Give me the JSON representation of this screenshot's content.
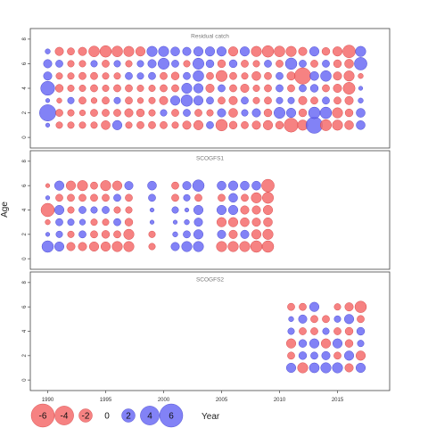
{
  "chart_data": {
    "type": "scatter",
    "subtype": "bubble",
    "ylabel": "Age",
    "xlabel": "Year",
    "xlim": [
      1988.5,
      2019.5
    ],
    "ylim": [
      -0.5,
      8.5
    ],
    "x_ticks": [
      1990,
      1995,
      2000,
      2005,
      2010,
      2015
    ],
    "y_ticks": [
      0,
      2,
      4,
      6,
      8
    ],
    "grid": false,
    "colors": {
      "positive": "#6c6cf5",
      "negative": "#f56c6c",
      "positive_edge": "#3838c8",
      "negative_edge": "#d03838"
    },
    "legend": {
      "placement": "bottom-left",
      "values": [
        -6,
        -4,
        -2,
        0,
        2,
        4,
        6
      ],
      "labels": [
        "-6",
        "-4",
        "-2",
        "0",
        "2",
        "4",
        "6"
      ]
    },
    "panels": [
      {
        "title": "Residual catch",
        "years": [
          1990,
          1991,
          1992,
          1993,
          1994,
          1995,
          1996,
          1997,
          1998,
          1999,
          2000,
          2001,
          2002,
          2003,
          2004,
          2005,
          2006,
          2007,
          2008,
          2009,
          2010,
          2011,
          2012,
          2013,
          2014,
          2015,
          2016,
          2017
        ],
        "ages": [
          1,
          2,
          3,
          4,
          5,
          6,
          7
        ],
        "residuals": [
          [
            0.2,
            -0.5,
            -0.5,
            -0.5,
            -0.5,
            -0.9,
            1.0,
            -0.5,
            -0.6,
            -0.6,
            -0.6,
            -0.5,
            -0.8,
            -1.0,
            0.6,
            -1.5,
            -0.7,
            -0.6,
            -0.8,
            -1.0,
            -0.7,
            -2.2,
            -1.2,
            3.0,
            -1.4,
            -1.2,
            -0.9,
            0.9
          ],
          [
            3.0,
            -0.6,
            -0.5,
            -0.4,
            -0.6,
            -0.6,
            -0.6,
            -0.8,
            -0.7,
            -0.5,
            0.5,
            -0.6,
            0.6,
            -0.6,
            -0.5,
            0.8,
            -0.9,
            0.5,
            0.8,
            -0.7,
            1.4,
            1.0,
            -0.7,
            1.5,
            1.5,
            -1.2,
            -0.7,
            0.9
          ],
          [
            0.2,
            -0.3,
            0.5,
            -0.6,
            -0.4,
            -0.6,
            0.5,
            -0.6,
            -0.4,
            -0.5,
            -0.8,
            1.0,
            1.5,
            1.0,
            0.6,
            -0.6,
            -0.8,
            0.6,
            -0.5,
            -0.6,
            0.5,
            0.5,
            -0.8,
            -0.6,
            0.6,
            -0.6,
            -0.8,
            0.3
          ],
          [
            2.2,
            -0.7,
            -0.5,
            -0.5,
            -0.6,
            -0.5,
            -0.6,
            -0.6,
            -0.5,
            -0.5,
            -0.6,
            -0.6,
            1.2,
            1.0,
            -0.8,
            0.6,
            -0.6,
            -0.8,
            -0.5,
            -0.6,
            0.6,
            -0.6,
            0.6,
            0.7,
            -0.6,
            -0.8,
            -1.6,
            0.2
          ],
          [
            0.8,
            -0.5,
            -0.5,
            -0.6,
            -0.6,
            -0.5,
            -0.5,
            0.6,
            0.5,
            0.6,
            -0.6,
            -0.7,
            0.6,
            1.3,
            -0.6,
            -1.4,
            -0.6,
            -0.5,
            -0.9,
            -0.6,
            0.6,
            -0.8,
            -3.0,
            0.9,
            1.3,
            -0.8,
            -1.2,
            -0.3
          ],
          [
            0.8,
            0.6,
            -0.5,
            -0.5,
            0.5,
            -0.6,
            0.5,
            -0.5,
            0.5,
            0.8,
            1.4,
            0.6,
            -0.5,
            1.4,
            0.7,
            -0.7,
            0.7,
            -0.6,
            -0.5,
            0.6,
            -0.6,
            1.5,
            0.6,
            -0.6,
            0.6,
            -0.7,
            -0.9,
            1.8
          ],
          [
            0.3,
            -0.8,
            -0.6,
            -0.8,
            -1.3,
            -1.5,
            -1.3,
            -1.2,
            -1.0,
            1.2,
            1.2,
            0.9,
            0.8,
            1.0,
            1.0,
            1.0,
            -1.0,
            1.0,
            -1.2,
            -1.5,
            -1.3,
            -1.2,
            -0.8,
            1.0,
            -0.7,
            -1.0,
            -1.8,
            1.2
          ]
        ]
      },
      {
        "title": "SCOGFS1",
        "years": [
          1990,
          1991,
          1992,
          1993,
          1994,
          1995,
          1996,
          1997,
          1998,
          1999,
          2000,
          2001,
          2002,
          2003,
          2004,
          2005,
          2006,
          2007,
          2008,
          2009
        ],
        "ages": [
          1,
          2,
          3,
          4,
          5,
          6
        ],
        "residuals": [
          [
            1.5,
            1.0,
            -0.8,
            -0.8,
            -1.0,
            -1.0,
            -1.2,
            -1.2,
            null,
            -0.5,
            null,
            0.8,
            1.2,
            1.2,
            null,
            -1.2,
            -1.2,
            -1.2,
            -1.5,
            -1.5
          ],
          [
            0.2,
            0.5,
            -0.5,
            0.6,
            -0.6,
            -0.7,
            -0.6,
            -1.2,
            null,
            -0.5,
            null,
            0.3,
            0.6,
            1.0,
            null,
            0.8,
            -0.8,
            0.8,
            -1.0,
            -1.2
          ],
          [
            -0.3,
            0.6,
            0.5,
            0.4,
            -0.5,
            -0.5,
            0.6,
            -0.7,
            null,
            0.2,
            null,
            0.2,
            0.3,
            0.8,
            null,
            -1.0,
            -1.0,
            -0.9,
            -0.8,
            -0.9
          ],
          [
            -2.0,
            1.0,
            -0.5,
            0.6,
            0.5,
            0.6,
            -0.5,
            -0.5,
            null,
            0.2,
            null,
            0.5,
            0.2,
            1.0,
            null,
            1.0,
            1.0,
            -0.8,
            -0.8,
            -1.0
          ],
          [
            0.2,
            -0.6,
            -0.6,
            -0.6,
            -0.6,
            -0.6,
            0.6,
            -0.6,
            null,
            0.6,
            null,
            -0.6,
            0.5,
            -0.6,
            null,
            -0.6,
            0.9,
            -0.6,
            -1.2,
            -1.4
          ],
          [
            -0.2,
            1.0,
            -1.0,
            -1.2,
            -0.6,
            -1.2,
            -1.0,
            0.8,
            null,
            0.9,
            null,
            -0.6,
            0.8,
            1.5,
            null,
            0.9,
            1.0,
            0.9,
            0.9,
            -1.8
          ]
        ]
      },
      {
        "title": "SCOGFS2",
        "years": [
          2011,
          2012,
          2013,
          2014,
          2015,
          2016,
          2017
        ],
        "ages": [
          1,
          2,
          3,
          4,
          5,
          6
        ],
        "residuals": [
          [
            1.0,
            -1.2,
            1.1,
            1.2,
            1.2,
            -0.8,
            1.0
          ],
          [
            -0.6,
            0.7,
            0.6,
            0.8,
            -0.6,
            1.0,
            -1.0
          ],
          [
            -1.0,
            0.7,
            1.0,
            -1.0,
            1.0,
            -0.7,
            0.5
          ],
          [
            0.5,
            -0.6,
            -0.6,
            0.5,
            -0.6,
            -0.7,
            0.7
          ],
          [
            0.3,
            0.8,
            -0.6,
            -0.6,
            0.5,
            1.0,
            -0.6
          ],
          [
            -0.6,
            -0.6,
            1.0,
            null,
            -0.5,
            -0.8,
            -1.5
          ]
        ]
      }
    ]
  }
}
